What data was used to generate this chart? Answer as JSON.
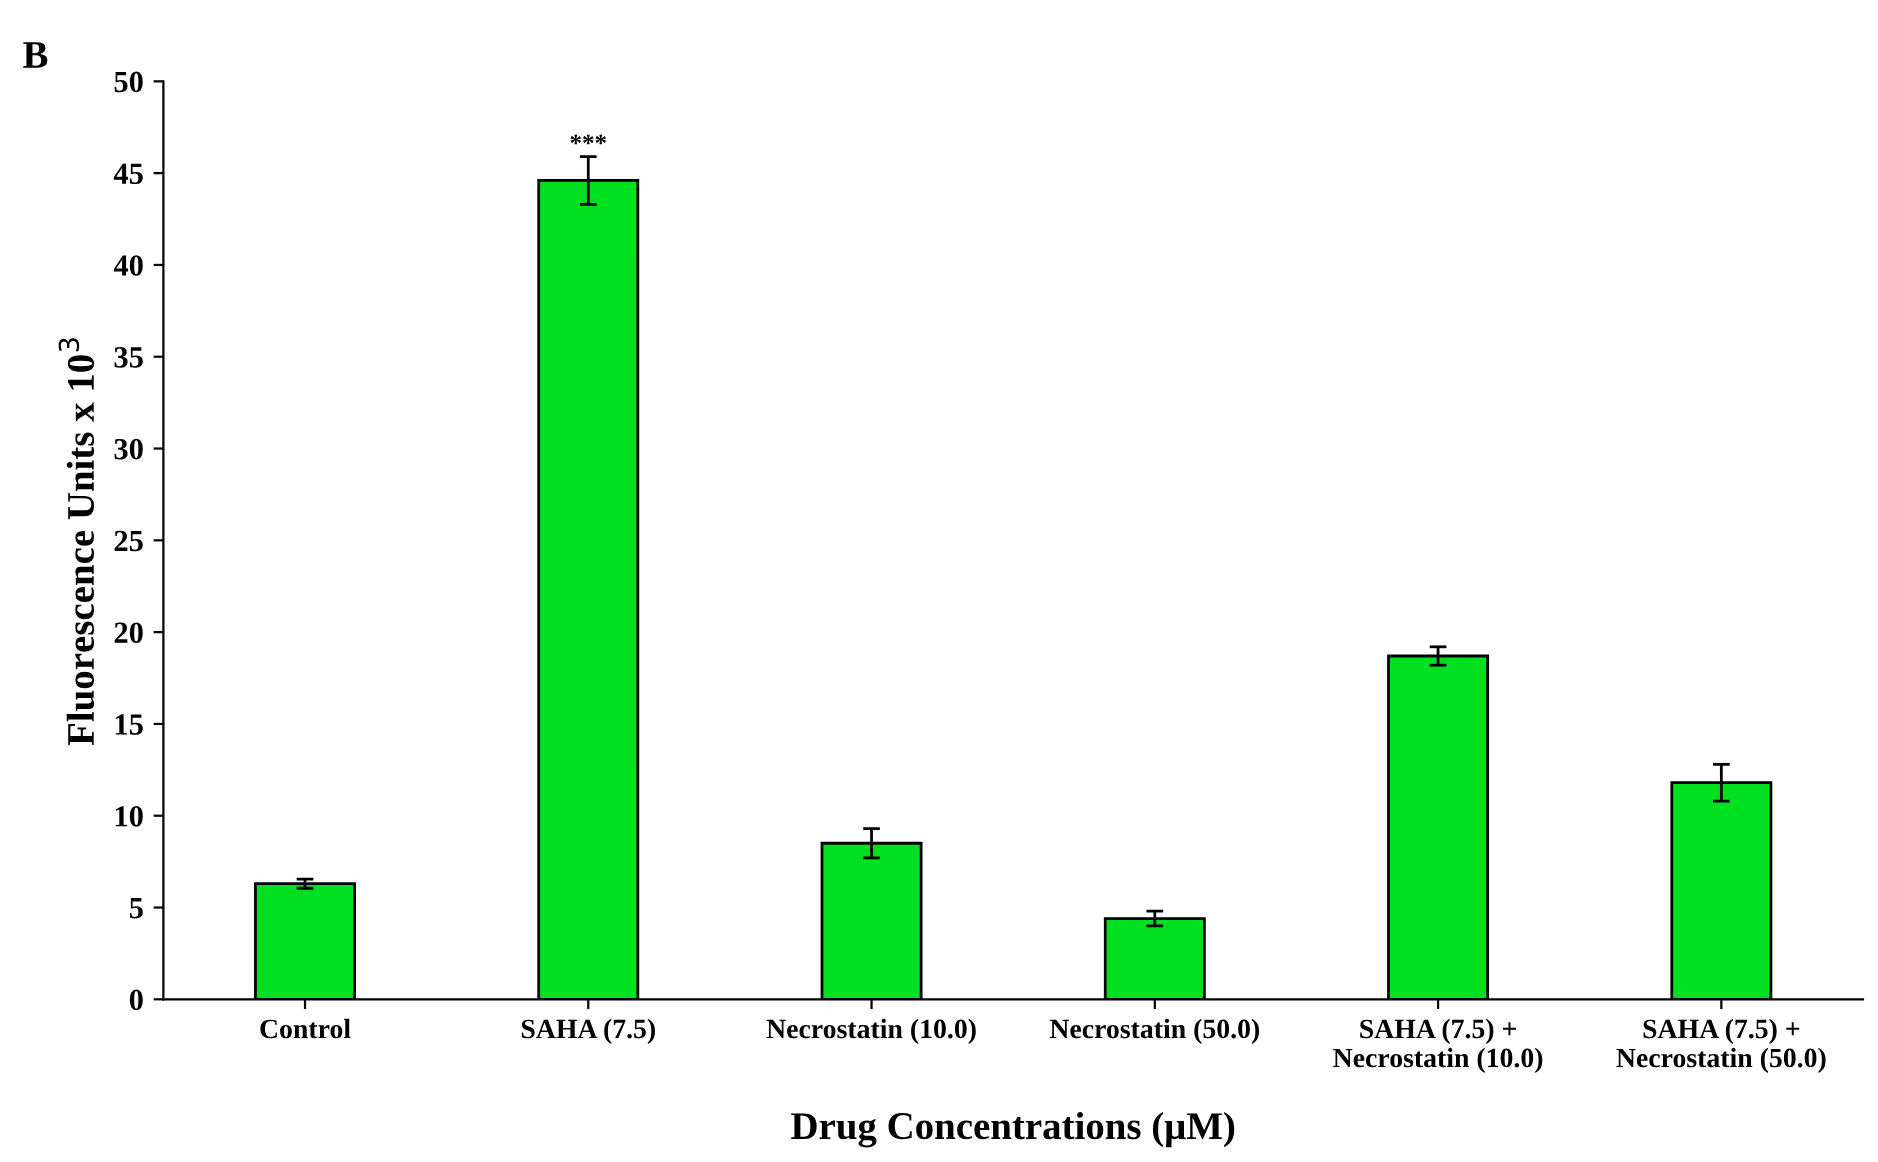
{
  "chart_data": {
    "type": "bar",
    "title": "B",
    "xlabel": "Drug Concentrations (μM)",
    "ylabel": "Fluorescence Units x 10$^{3}$",
    "categories": [
      "Control",
      "SAHA (7.5)",
      "Necrostatin (10.0)",
      "Necrostatin (50.0)",
      "SAHA (7.5) +\nNecrostatin (10.0)",
      "SAHA (7.5) +\nNecrostatin (50.0)"
    ],
    "values": [
      6.3,
      44.6,
      8.5,
      4.4,
      18.7,
      11.8
    ],
    "errors": [
      0.25,
      1.3,
      0.8,
      0.4,
      0.5,
      1.0
    ],
    "color": "#00e020",
    "ylim": [
      0,
      50
    ],
    "yticks": [
      0,
      5,
      10,
      15,
      20,
      25,
      30,
      35,
      40,
      45,
      50
    ],
    "grid": false,
    "annotations": [
      {
        "text": "***",
        "x": "SAHA (7.5)",
        "y": 45.9
      }
    ]
  }
}
